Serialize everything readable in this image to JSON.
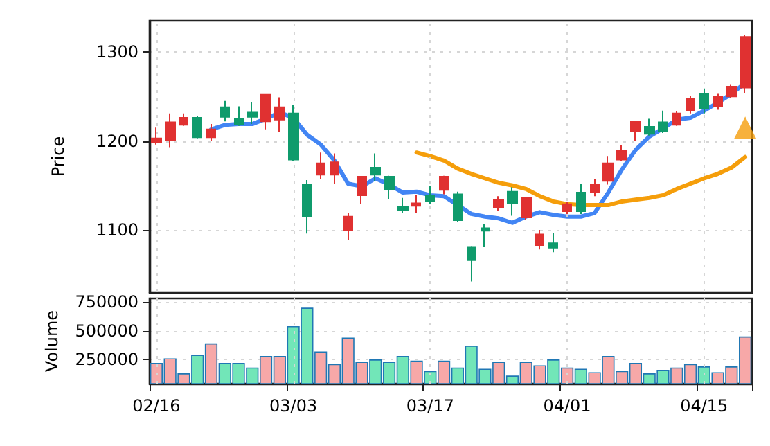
{
  "chart_data": [
    {
      "type": "candlestick",
      "ylabel": "Price",
      "ylim": [
        1030,
        1335
      ],
      "yticks": [
        1100,
        1200,
        1300
      ],
      "grid": true,
      "tick_labels": "y",
      "categories": [
        null,
        null,
        null,
        null,
        null,
        null,
        null,
        null,
        null,
        null,
        null,
        null,
        null,
        null,
        null,
        null,
        null,
        null,
        null,
        null,
        null,
        null,
        null,
        null,
        null,
        null,
        null,
        null,
        null,
        null,
        null,
        null,
        null,
        null,
        null,
        null,
        null,
        null,
        null,
        null,
        null,
        null,
        null,
        null
      ],
      "ohlc": [
        [
          1198,
          1215,
          1196,
          1203
        ],
        [
          1201,
          1231,
          1193,
          1221
        ],
        [
          1218,
          1231,
          1217,
          1226
        ],
        [
          1226,
          1228,
          1203,
          1204
        ],
        [
          1204,
          1219,
          1200,
          1213
        ],
        [
          1238,
          1245,
          1222,
          1227
        ],
        [
          1225,
          1239,
          1217,
          1219
        ],
        [
          1232,
          1244,
          1219,
          1227
        ],
        [
          1222,
          1252,
          1213,
          1252
        ],
        [
          1224,
          1249,
          1210,
          1238
        ],
        [
          1231,
          1240,
          1177,
          1179
        ],
        [
          1151,
          1156,
          1096,
          1115
        ],
        [
          1162,
          1187,
          1157,
          1175
        ],
        [
          1162,
          1186,
          1152,
          1176
        ],
        [
          1100,
          1119,
          1089,
          1115
        ],
        [
          1139,
          1160,
          1129,
          1160
        ],
        [
          1170,
          1186,
          1155,
          1162
        ],
        [
          1160,
          1161,
          1135,
          1146
        ],
        [
          1126,
          1136,
          1119,
          1122
        ],
        [
          1127,
          1139,
          1119,
          1130
        ],
        [
          1139,
          1149,
          1129,
          1132
        ],
        [
          1145,
          1161,
          1140,
          1160
        ],
        [
          1140,
          1143,
          1109,
          1111
        ],
        [
          1081,
          1082,
          1042,
          1066
        ],
        [
          1102,
          1107,
          1081,
          1099
        ],
        [
          1125,
          1138,
          1121,
          1134
        ],
        [
          1143,
          1148,
          1116,
          1130
        ],
        [
          1114,
          1137,
          1111,
          1136
        ],
        [
          1083,
          1100,
          1078,
          1095
        ],
        [
          1085,
          1097,
          1075,
          1080
        ],
        [
          1121,
          1132,
          1118,
          1129
        ],
        [
          1142,
          1152,
          1118,
          1121
        ],
        [
          1142,
          1157,
          1138,
          1151
        ],
        [
          1155,
          1183,
          1151,
          1175
        ],
        [
          1179,
          1195,
          1177,
          1189
        ],
        [
          1211,
          1222,
          1200,
          1222
        ],
        [
          1216,
          1225,
          1206,
          1208
        ],
        [
          1221,
          1234,
          1209,
          1211
        ],
        [
          1218,
          1233,
          1217,
          1231
        ],
        [
          1234,
          1251,
          1231,
          1247
        ],
        [
          1253,
          1259,
          1231,
          1237
        ],
        [
          1239,
          1253,
          1235,
          1250
        ],
        [
          1250,
          1263,
          1248,
          1261
        ],
        [
          1260,
          1319,
          1254,
          1317
        ]
      ],
      "colors": [
        "#e03131",
        "#e03131",
        "#e03131",
        "#0f9b6c",
        "#e03131",
        "#0f9b6c",
        "#0f9b6c",
        "#0f9b6c",
        "#e03131",
        "#e03131",
        "#0f9b6c",
        "#0f9b6c",
        "#e03131",
        "#e03131",
        "#e03131",
        "#e03131",
        "#0f9b6c",
        "#0f9b6c",
        "#0f9b6c",
        "#e03131",
        "#0f9b6c",
        "#e03131",
        "#0f9b6c",
        "#0f9b6c",
        "#0f9b6c",
        "#e03131",
        "#0f9b6c",
        "#e03131",
        "#e03131",
        "#0f9b6c",
        "#e03131",
        "#0f9b6c",
        "#e03131",
        "#e03131",
        "#e03131",
        "#e03131",
        "#0f9b6c",
        "#0f9b6c",
        "#e03131",
        "#e03131",
        "#0f9b6c",
        "#e03131",
        "#e03131",
        "#e03131"
      ],
      "series": [
        {
          "type": "line",
          "color": "#4285f4",
          "values": [
            null,
            null,
            null,
            null,
            1213,
            1218,
            1219,
            1219,
            1225,
            1232,
            1226,
            1207,
            1196,
            1178,
            1152,
            1149,
            1158,
            1151,
            1142,
            1143,
            1139,
            1138,
            1128,
            1118,
            1115,
            1113,
            1108,
            1115,
            1120,
            1117,
            1115,
            1115,
            1119,
            1142,
            1168,
            1190,
            1205,
            1214,
            1224,
            1226,
            1234,
            1243,
            1253,
            1265
          ]
        },
        {
          "type": "line",
          "color": "#f59e0b",
          "values": [
            null,
            null,
            null,
            null,
            null,
            null,
            null,
            null,
            null,
            null,
            null,
            null,
            null,
            null,
            null,
            null,
            null,
            null,
            null,
            1187,
            1183,
            1178,
            1169,
            1163,
            1158,
            1153,
            1150,
            1146,
            1138,
            1132,
            1129,
            1128,
            1128,
            1128,
            1132,
            1134,
            1136,
            1139,
            1146,
            1152,
            1158,
            1163,
            1170,
            1182
          ]
        },
        {
          "type": "scatter",
          "color": "#f59e0b",
          "marker": "triangle",
          "values": [
            null,
            null,
            null,
            null,
            null,
            null,
            null,
            null,
            null,
            null,
            null,
            null,
            null,
            null,
            null,
            null,
            null,
            null,
            null,
            null,
            null,
            null,
            null,
            null,
            null,
            null,
            null,
            null,
            null,
            null,
            null,
            null,
            null,
            null,
            null,
            null,
            null,
            null,
            null,
            null,
            null,
            null,
            null,
            1215
          ]
        }
      ]
    },
    {
      "type": "bar",
      "ylabel": "Volume",
      "ylim": [
        40000,
        780000
      ],
      "yticks": [
        250000,
        500000,
        750000
      ],
      "grid": true,
      "categories": [
        "02/16",
        null,
        null,
        null,
        null,
        null,
        null,
        null,
        null,
        null,
        "03/03",
        null,
        null,
        null,
        null,
        null,
        null,
        null,
        null,
        null,
        "03/17",
        null,
        null,
        null,
        null,
        null,
        null,
        null,
        null,
        null,
        "04/01",
        null,
        null,
        null,
        null,
        null,
        null,
        null,
        null,
        null,
        "04/15",
        null,
        null,
        null
      ],
      "values": [
        220000,
        260000,
        130000,
        290000,
        390000,
        220000,
        220000,
        180000,
        280000,
        280000,
        540000,
        700000,
        320000,
        210000,
        440000,
        230000,
        250000,
        230000,
        280000,
        240000,
        150000,
        240000,
        180000,
        370000,
        170000,
        230000,
        110000,
        230000,
        200000,
        250000,
        180000,
        170000,
        140000,
        280000,
        150000,
        220000,
        130000,
        160000,
        180000,
        210000,
        190000,
        140000,
        190000,
        450000
      ],
      "colors": [
        "#f7a8a8",
        "#f7a8a8",
        "#f7a8a8",
        "#72e6b8",
        "#f7a8a8",
        "#72e6b8",
        "#72e6b8",
        "#72e6b8",
        "#f7a8a8",
        "#f7a8a8",
        "#72e6b8",
        "#72e6b8",
        "#f7a8a8",
        "#f7a8a8",
        "#f7a8a8",
        "#f7a8a8",
        "#72e6b8",
        "#72e6b8",
        "#72e6b8",
        "#f7a8a8",
        "#72e6b8",
        "#f7a8a8",
        "#72e6b8",
        "#72e6b8",
        "#72e6b8",
        "#f7a8a8",
        "#72e6b8",
        "#f7a8a8",
        "#f7a8a8",
        "#72e6b8",
        "#f7a8a8",
        "#72e6b8",
        "#f7a8a8",
        "#f7a8a8",
        "#f7a8a8",
        "#f7a8a8",
        "#72e6b8",
        "#72e6b8",
        "#f7a8a8",
        "#f7a8a8",
        "#72e6b8",
        "#f7a8a8",
        "#f7a8a8",
        "#f7a8a8"
      ]
    }
  ]
}
